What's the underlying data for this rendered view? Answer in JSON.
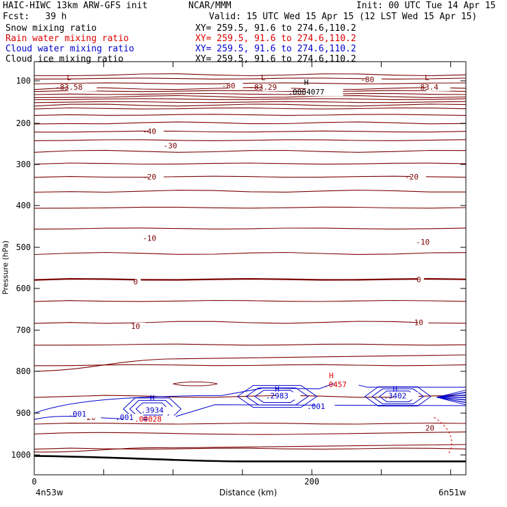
{
  "header": {
    "model": "HAIC-HIWC 13km ARW-GFS init",
    "org": "NCAR/MMM",
    "init": "Init: 00 UTC Tue 14 Apr 15",
    "fcst_label": "Fcst:",
    "fcst_value": "39 h",
    "valid": "Valid: 15 UTC Wed 15 Apr 15 (12 LST Wed 15 Apr 15)"
  },
  "legend": [
    {
      "label": "Snow mixing ratio",
      "xy": "XY= 259.5, 91.6 to 274.6,110.2",
      "color": "#000000"
    },
    {
      "label": "Rain water mixing ratio",
      "xy": "XY= 259.5, 91.6 to 274.6,110.2",
      "color": "#dd0000"
    },
    {
      "label": "Cloud water mixing ratio",
      "xy": "XY= 259.5, 91.6 to 274.6,110.2",
      "color": "#0000cc"
    },
    {
      "label": "Cloud ice mixing ratio",
      "xy": "XY= 259.5, 91.6 to 274.6,110.2",
      "color": "#000000"
    }
  ],
  "axes": {
    "ylabel": "Pressure (hPa)",
    "xlabel": "Distance (km)",
    "left_point": "4n53w",
    "right_point": "6n51w"
  },
  "colors": {
    "temperature": "#7a0000",
    "cloud_water": "#0000cc",
    "rain_water": "#dd0000",
    "snow": "#000000"
  },
  "chart_data": {
    "type": "cross-section contour",
    "x_unit": "km",
    "y_unit": "hPa",
    "xlim": [
      0,
      311
    ],
    "ylim": [
      1040,
      75
    ],
    "y_scale": "log-pressure",
    "yticks": [
      100,
      200,
      300,
      400,
      500,
      600,
      700,
      800,
      900,
      1000
    ],
    "xticks": [
      0,
      50,
      100,
      150,
      200,
      250,
      300
    ],
    "xtick_labels": [
      {
        "x": 0,
        "label": "0"
      },
      {
        "x": 200,
        "label": "200"
      }
    ],
    "temperature_contour_labels": [
      {
        "text": "-80",
        "x": 140,
        "p": 111
      },
      {
        "text": "-80",
        "x": 240,
        "p": 98
      },
      {
        "text": "-40",
        "x": 83,
        "p": 219
      },
      {
        "text": "-30",
        "x": 98,
        "p": 254
      },
      {
        "text": "-20",
        "x": 83,
        "p": 330
      },
      {
        "text": "-20",
        "x": 272,
        "p": 330
      },
      {
        "text": "-10",
        "x": 83,
        "p": 478
      },
      {
        "text": "-10",
        "x": 280,
        "p": 487
      },
      {
        "text": "0",
        "x": 73,
        "p": 583
      },
      {
        "text": "0",
        "x": 277,
        "p": 578
      },
      {
        "text": "10",
        "x": 73,
        "p": 690
      },
      {
        "text": "10",
        "x": 277,
        "p": 681
      },
      {
        "text": "20",
        "x": 41,
        "p": 910
      },
      {
        "text": "20",
        "x": 285,
        "p": 935
      }
    ],
    "cloud_water_labels": [
      {
        "text": ".001",
        "x": 31,
        "p": 902
      },
      {
        "text": ".001",
        "x": 65,
        "p": 910
      },
      {
        "text": ".001",
        "x": 203,
        "p": 884
      },
      {
        "text": ".3934",
        "x": 85,
        "p": 893
      },
      {
        "text": ".2983",
        "x": 175,
        "p": 858
      },
      {
        "text": ".3402",
        "x": 260,
        "p": 858
      }
    ],
    "rain_water_labels": [
      {
        "text": ".00028",
        "x": 82,
        "p": 914
      },
      {
        "text": ".0457",
        "x": 217,
        "p": 831
      }
    ],
    "extrema": [
      {
        "type": "L",
        "value": "-83.58",
        "x": 25,
        "p": 99
      },
      {
        "type": "L",
        "value": "-83.29",
        "x": 165,
        "p": 99
      },
      {
        "type": "H",
        "value": ".0004077",
        "x": 196,
        "p": 110
      },
      {
        "type": "L",
        "value": "-83.4",
        "x": 283,
        "p": 99
      },
      {
        "type": "H",
        "value": ".3934",
        "x": 85,
        "p": 870
      },
      {
        "type": "H",
        "value": ".2983",
        "x": 175,
        "p": 848
      },
      {
        "type": "H",
        "value": ".3402",
        "x": 260,
        "p": 848
      },
      {
        "type": "H",
        "value": ".0457",
        "x": 214,
        "p": 816
      }
    ]
  }
}
